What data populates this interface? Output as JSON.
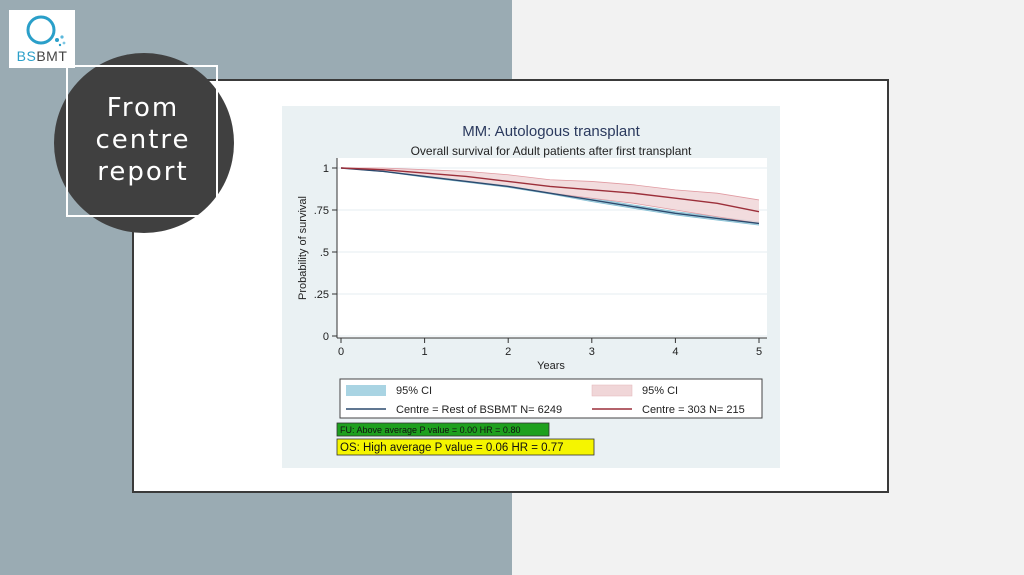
{
  "logo": {
    "part1": "BS",
    "part2": "BMT"
  },
  "badge": {
    "lines": [
      "From",
      "centre",
      "report"
    ]
  },
  "colors": {
    "rest_line": "#2b4a6e",
    "rest_band": "#a9d4e3",
    "centre_line": "#9c2f3a",
    "centre_band": "#f0d6d8",
    "fu_box": "#1ea01e",
    "os_box": "#f5f500"
  },
  "chart_data": {
    "type": "line",
    "title": "MM: Autologous transplant",
    "subtitle": "Overall survival for Adult patients after first transplant",
    "xlabel": "Years",
    "ylabel": "Probability of survival",
    "xlim": [
      0,
      5
    ],
    "ylim": [
      0,
      1
    ],
    "x_ticks": [
      "0",
      "1",
      "2",
      "3",
      "4",
      "5"
    ],
    "y_ticks": [
      "0",
      ".25",
      ".5",
      ".75",
      "1"
    ],
    "grid": true,
    "legend_position": "bottom",
    "series": [
      {
        "name": "Centre = Rest of BSBMT N= 6249",
        "ci_label": "95% CI",
        "x": [
          0,
          0.5,
          1,
          1.5,
          2,
          2.5,
          3,
          3.5,
          4,
          4.5,
          5
        ],
        "values": [
          1.0,
          0.98,
          0.95,
          0.92,
          0.89,
          0.85,
          0.81,
          0.77,
          0.73,
          0.7,
          0.67
        ],
        "ci_lower": [
          1.0,
          0.979,
          0.945,
          0.915,
          0.885,
          0.845,
          0.8,
          0.76,
          0.72,
          0.69,
          0.66
        ],
        "ci_upper": [
          1.0,
          0.981,
          0.955,
          0.925,
          0.895,
          0.855,
          0.82,
          0.78,
          0.74,
          0.71,
          0.68
        ]
      },
      {
        "name": "Centre = 303 N=  215",
        "ci_label": "95% CI",
        "x": [
          0,
          0.5,
          1,
          1.5,
          2,
          2.5,
          3,
          3.5,
          4,
          4.5,
          5
        ],
        "values": [
          1.0,
          0.99,
          0.97,
          0.95,
          0.92,
          0.89,
          0.87,
          0.85,
          0.82,
          0.79,
          0.74
        ],
        "ci_lower": [
          1.0,
          0.98,
          0.95,
          0.92,
          0.89,
          0.85,
          0.82,
          0.79,
          0.75,
          0.71,
          0.67
        ],
        "ci_upper": [
          1.0,
          1.0,
          0.99,
          0.98,
          0.96,
          0.93,
          0.92,
          0.9,
          0.87,
          0.85,
          0.81
        ]
      }
    ],
    "annotations": [
      {
        "text": "FU: Above average P value = 0.00 HR = 0.80",
        "color": "#1ea01e"
      },
      {
        "text": "OS: High average P value = 0.06 HR = 0.77",
        "color": "#f5f500"
      }
    ]
  }
}
